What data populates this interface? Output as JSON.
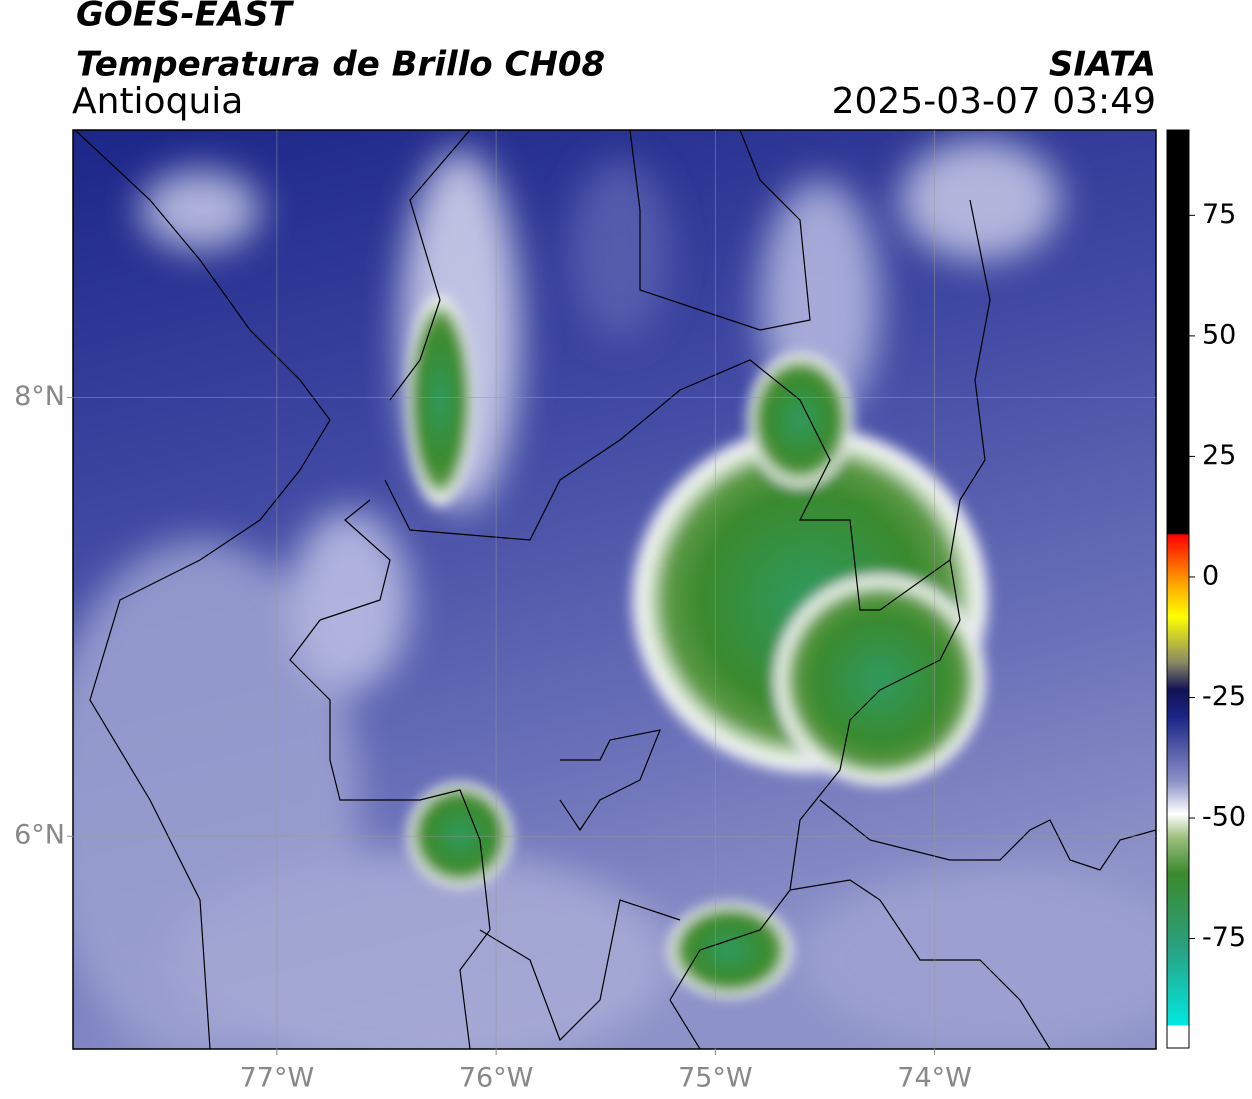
{
  "header": {
    "title": "GOES-EAST",
    "subtitle": "Temperatura de Brillo CH08",
    "region": "Antioquia",
    "source": "SIATA",
    "datetime": "2025-03-07 03:49"
  },
  "map": {
    "xlim": [
      -77.93,
      -72.99
    ],
    "ylim": [
      5.03,
      9.22
    ],
    "xticks": [
      {
        "value": -77,
        "label": "77°W"
      },
      {
        "value": -76,
        "label": "76°W"
      },
      {
        "value": -75,
        "label": "75°W"
      },
      {
        "value": -74,
        "label": "74°W"
      }
    ],
    "yticks": [
      {
        "value": 6,
        "label": "6°N"
      },
      {
        "value": 8,
        "label": "8°N"
      }
    ],
    "grid": true
  },
  "colorbar": {
    "lim": [
      -97.7,
      92.7
    ],
    "ticks": [
      -75,
      -50,
      -25,
      0,
      25,
      50,
      75
    ]
  }
}
